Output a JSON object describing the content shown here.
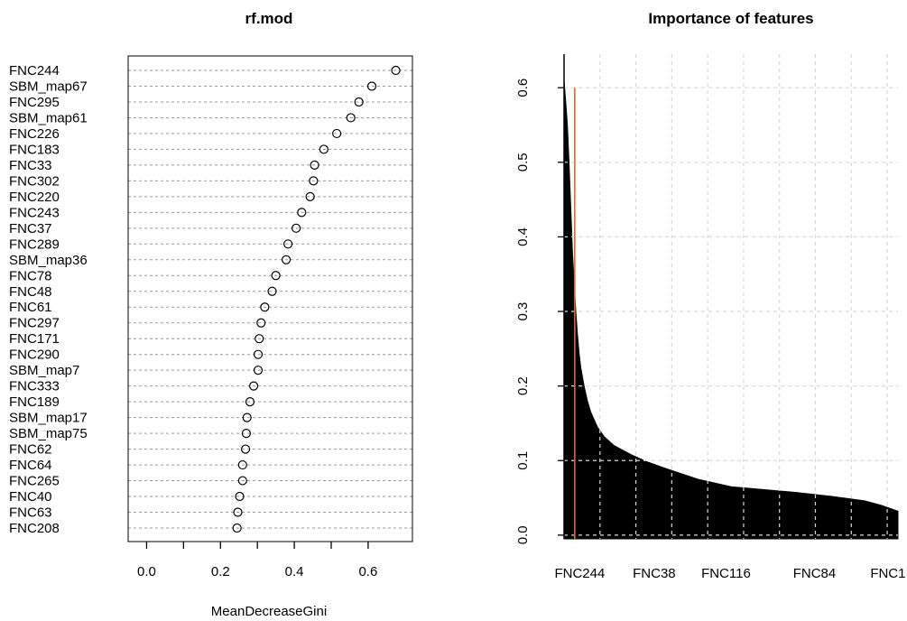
{
  "chart_data": [
    {
      "type": "scatter",
      "variant": "dotchart",
      "title": "rf.mod",
      "xlabel": "MeanDecreaseGini",
      "ylabel": "",
      "xlim": [
        -0.05,
        0.72
      ],
      "xticks": [
        0.0,
        0.2,
        0.4,
        0.6
      ],
      "xtick_labels": [
        "0.0",
        "0.2",
        "0.4",
        "0.6"
      ],
      "minor_xticks": [
        0.1,
        0.3,
        0.5
      ],
      "marker": "open-circle",
      "grid": "dashed-horizontal",
      "categories": [
        "FNC244",
        "SBM_map67",
        "FNC295",
        "SBM_map61",
        "FNC226",
        "FNC183",
        "FNC33",
        "FNC302",
        "FNC220",
        "FNC243",
        "FNC37",
        "FNC289",
        "SBM_map36",
        "FNC78",
        "FNC48",
        "FNC61",
        "FNC297",
        "FNC171",
        "FNC290",
        "SBM_map7",
        "FNC333",
        "FNC189",
        "SBM_map17",
        "SBM_map75",
        "FNC62",
        "FNC64",
        "FNC265",
        "FNC40",
        "FNC63",
        "FNC208"
      ],
      "values": [
        0.675,
        0.61,
        0.575,
        0.553,
        0.515,
        0.48,
        0.455,
        0.452,
        0.443,
        0.42,
        0.405,
        0.383,
        0.378,
        0.35,
        0.34,
        0.32,
        0.31,
        0.305,
        0.302,
        0.302,
        0.29,
        0.28,
        0.272,
        0.27,
        0.268,
        0.26,
        0.26,
        0.252,
        0.247,
        0.245
      ]
    },
    {
      "type": "area",
      "variant": "sorted-importance",
      "title": "Importance of features",
      "xlabel": "",
      "ylabel": "",
      "ylim": [
        -0.005,
        0.645
      ],
      "yticks": [
        0.0,
        0.1,
        0.2,
        0.3,
        0.4,
        0.5,
        0.6
      ],
      "ytick_labels": [
        "0.0",
        "0.1",
        "0.2",
        "0.3",
        "0.4",
        "0.5",
        "0.6"
      ],
      "xlim": [
        0,
        1
      ],
      "xtick_labels": [
        "FNC244",
        "FNC38",
        "FNC116",
        "FNC84",
        "FNC1"
      ],
      "xtick_positions": [
        0.047,
        0.27,
        0.485,
        0.75,
        0.97
      ],
      "grid": "dashed",
      "fill_color": "#000000",
      "reference_line": {
        "x": 0.032,
        "y_top": 0.6,
        "color": "#E8641E"
      },
      "x": [
        0,
        0.005,
        0.01,
        0.015,
        0.02,
        0.025,
        0.03,
        0.035,
        0.04,
        0.045,
        0.05,
        0.06,
        0.07,
        0.08,
        0.1,
        0.12,
        0.15,
        0.2,
        0.25,
        0.3,
        0.4,
        0.5,
        0.6,
        0.7,
        0.8,
        0.9,
        0.95,
        1.0
      ],
      "values": [
        0.61,
        0.58,
        0.55,
        0.5,
        0.44,
        0.38,
        0.34,
        0.3,
        0.27,
        0.245,
        0.225,
        0.2,
        0.18,
        0.165,
        0.145,
        0.132,
        0.12,
        0.108,
        0.098,
        0.09,
        0.075,
        0.065,
        0.061,
        0.057,
        0.052,
        0.046,
        0.04,
        0.032
      ]
    }
  ]
}
